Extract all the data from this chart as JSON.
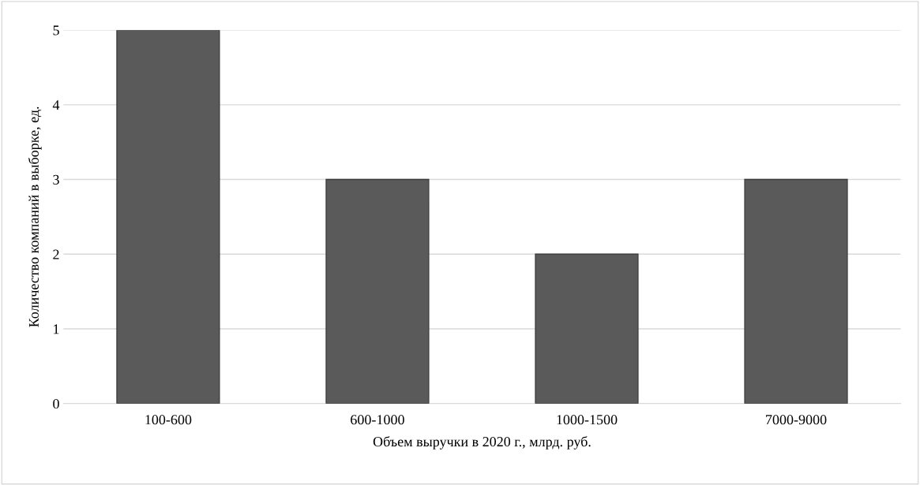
{
  "chart_data": {
    "type": "bar",
    "xlabel": "Объем выручки в 2020 г., млрд. руб.",
    "ylabel": "Количество компаний в выборке, ед.",
    "categories": [
      "100-600",
      "600-1000",
      "1000-1500",
      "7000-9000"
    ],
    "values": [
      5,
      3,
      2,
      3
    ],
    "color": "#5a5a5a",
    "ylim": [
      0,
      5
    ],
    "yticks": [
      0,
      1,
      2,
      3,
      4,
      5
    ],
    "grid": "y"
  }
}
